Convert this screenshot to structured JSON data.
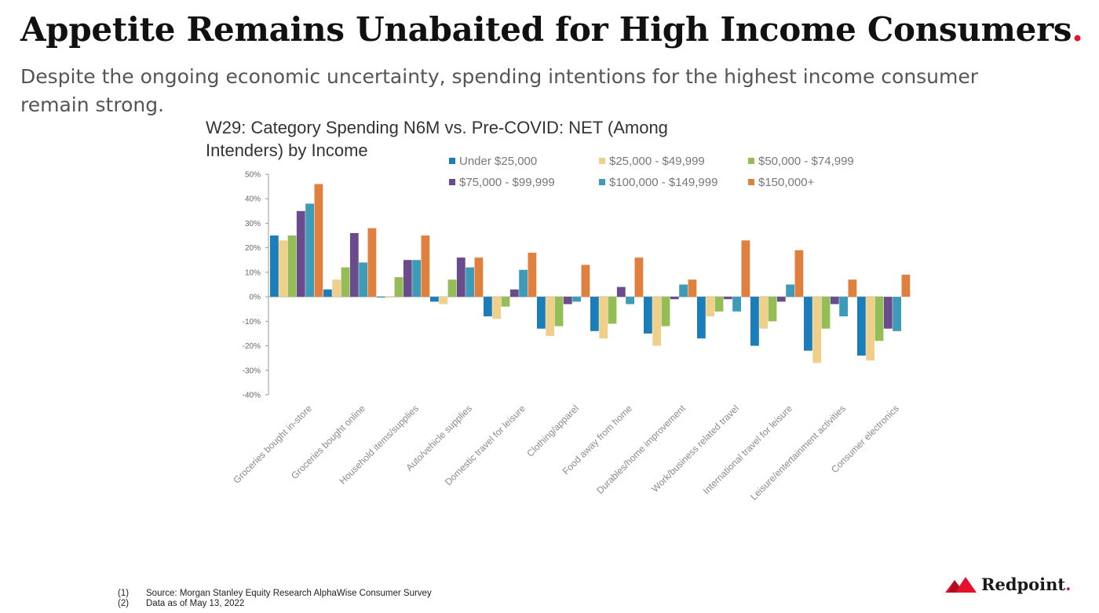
{
  "header": {
    "title": "Appetite Remains Unabaited for High Income Consumers",
    "title_dot": ".",
    "subtitle": "Despite the ongoing economic uncertainty, spending intentions for the highest income consumer remain strong."
  },
  "chart_data": {
    "type": "bar",
    "title": "W29: Category Spending N6M vs. Pre-COVID: NET (Among Intenders) by Income",
    "title_lines": [
      "W29: Category Spending N6M vs. Pre-COVID: NET (Among",
      "Intenders) by Income"
    ],
    "xlabel": "",
    "ylabel": "",
    "ylim": [
      -40,
      50
    ],
    "yticks": [
      "50%",
      "40%",
      "30%",
      "20%",
      "10%",
      "0%",
      "-10%",
      "-20%",
      "-30%",
      "-40%"
    ],
    "grid": false,
    "legend_position": "top",
    "categories": [
      "Groceries bought in-store",
      "Groceries bought online",
      "Household items/supplies",
      "Auto/vehicle supplies",
      "Domestic travel for leisure",
      "Clothing/apparel",
      "Food away from home",
      "Durables/home improvement",
      "Work/business related travel",
      "International travel for leisure",
      "Leisure/entertainment activities",
      "Consumer electronics"
    ],
    "series": [
      {
        "name": "Under $25,000",
        "color": "#1b7eb8",
        "values": [
          25,
          3,
          0,
          -2,
          -8,
          -13,
          -14,
          -15,
          -17,
          -20,
          -22,
          -24
        ]
      },
      {
        "name": "$25,000 - $49,999",
        "color": "#efd08a",
        "values": [
          23,
          7,
          0,
          -3,
          -9,
          -16,
          -17,
          -20,
          -8,
          -13,
          -27,
          -26
        ]
      },
      {
        "name": "$50,000 - $74,999",
        "color": "#95bd55",
        "values": [
          25,
          12,
          8,
          7,
          -4,
          -12,
          -11,
          -12,
          -6,
          -10,
          -13,
          -18
        ]
      },
      {
        "name": "$75,000 - $99,999",
        "color": "#6a4b8c",
        "values": [
          35,
          26,
          15,
          16,
          3,
          -3,
          4,
          -1,
          -1,
          -2,
          -3,
          -13
        ]
      },
      {
        "name": "$100,000 - $149,999",
        "color": "#3e9bb8",
        "values": [
          38,
          14,
          15,
          12,
          11,
          -2,
          -3,
          5,
          -6,
          5,
          -8,
          -14
        ]
      },
      {
        "name": "$150,000+",
        "color": "#e0803f",
        "values": [
          46,
          28,
          25,
          16,
          18,
          13,
          16,
          7,
          23,
          19,
          7,
          9
        ]
      }
    ]
  },
  "footnotes": [
    {
      "num": "(1)",
      "text": "Source: Morgan Stanley Equity Research AlphaWise Consumer Survey"
    },
    {
      "num": "(2)",
      "text": "Data as of May 13, 2022"
    }
  ],
  "logo": {
    "name": "Redpoint",
    "dot": "."
  }
}
